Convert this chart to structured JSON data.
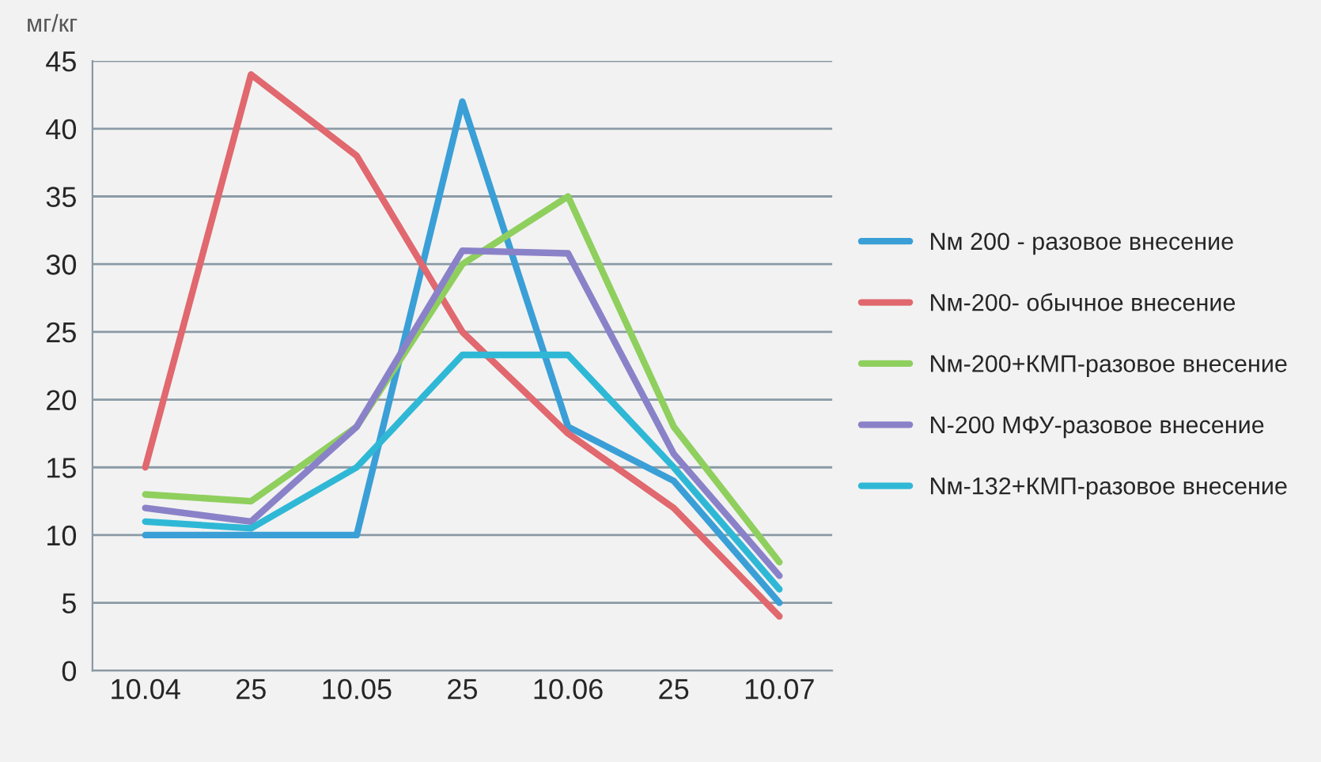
{
  "chart_data": {
    "type": "line",
    "ylabel": "мг/кг",
    "categories": [
      "10.04",
      "25",
      "10.05",
      "25",
      "10.06",
      "25",
      "10.07"
    ],
    "series": [
      {
        "name": "Nм 200 - разовое внесение",
        "color": "#3a9fd6",
        "values": [
          10,
          10,
          10,
          42,
          18,
          14,
          5
        ]
      },
      {
        "name": "Nм-200- обычное внесение",
        "color": "#e0686e",
        "values": [
          15,
          44,
          38,
          25,
          17.5,
          12,
          4
        ]
      },
      {
        "name": "Nм-200+КМП-разовое внесение",
        "color": "#8fcf5e",
        "values": [
          13,
          12.5,
          18,
          30,
          35,
          18,
          8
        ]
      },
      {
        "name": "N-200 МФУ-разовое внесение",
        "color": "#8a82c8",
        "values": [
          12,
          11,
          18,
          31,
          30.8,
          16,
          7
        ]
      },
      {
        "name": "Nм-132+КМП-разовое внесение",
        "color": "#2fb8d6",
        "values": [
          11,
          10.5,
          15,
          23.3,
          23.3,
          15,
          6
        ]
      }
    ],
    "ylim": [
      0,
      45
    ],
    "yticks": [
      0,
      5,
      10,
      15,
      20,
      25,
      30,
      35,
      40,
      45
    ],
    "grid": "y",
    "legend": "right",
    "marker": "none",
    "line_style": "solid"
  }
}
